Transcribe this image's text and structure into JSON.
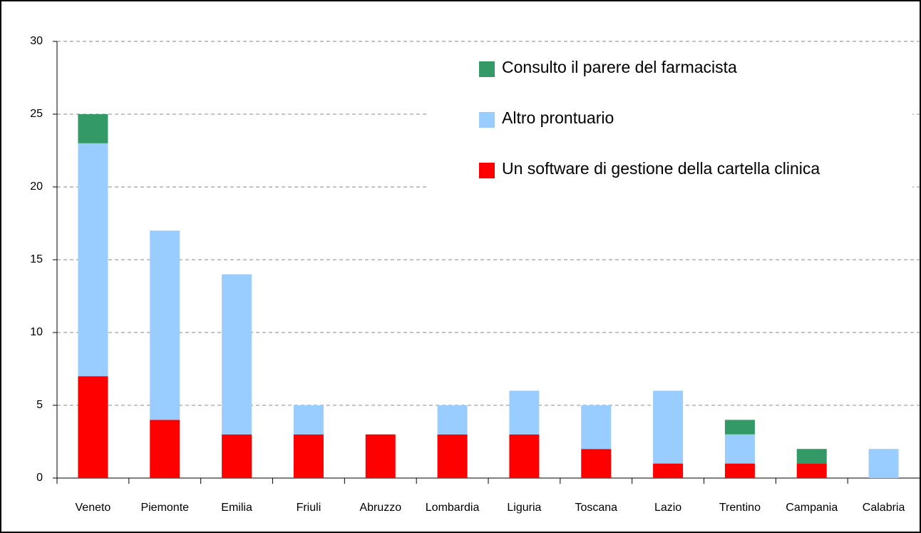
{
  "chart_data": {
    "type": "stacked_bar",
    "categories": [
      "Veneto",
      "Piemonte",
      "Emilia",
      "Friuli",
      "Abruzzo",
      "Lombardia",
      "Liguria",
      "Toscana",
      "Lazio",
      "Trentino",
      "Campania",
      "Calabria"
    ],
    "series": [
      {
        "name": "Un software di gestione della cartella clinica",
        "color": "#ff0000",
        "values": [
          7,
          4,
          3,
          3,
          3,
          3,
          3,
          2,
          1,
          1,
          1,
          0
        ]
      },
      {
        "name": "Altro prontuario",
        "color": "#99ccff",
        "values": [
          16,
          13,
          11,
          2,
          0,
          2,
          3,
          3,
          5,
          2,
          0,
          2
        ]
      },
      {
        "name": "Consulto il parere del farmacista",
        "color": "#339966",
        "values": [
          2,
          0,
          0,
          0,
          0,
          0,
          0,
          0,
          0,
          1,
          1,
          0
        ]
      }
    ],
    "ylim": [
      0,
      30
    ],
    "yticks": [
      0,
      5,
      10,
      15,
      20,
      25,
      30
    ],
    "grid": true,
    "legend": "top-right"
  }
}
